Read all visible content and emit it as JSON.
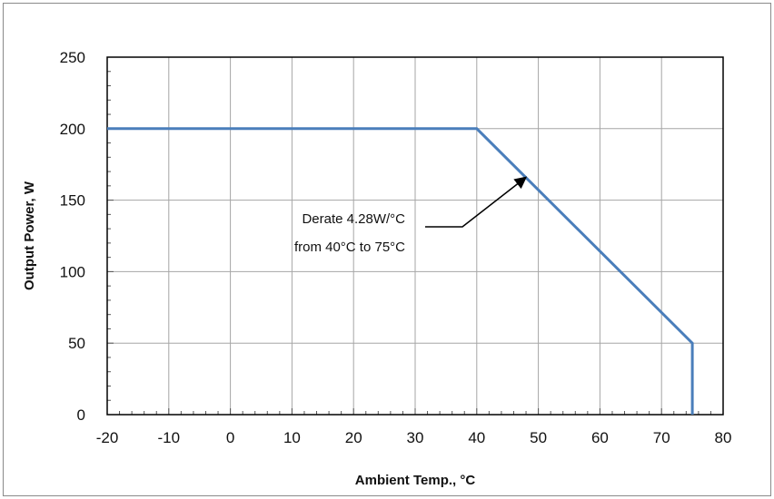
{
  "chart_data": {
    "type": "line",
    "title": "",
    "xlabel": "Ambient Temp., °C",
    "ylabel": "Output Power, W",
    "xlim": [
      -20,
      80
    ],
    "ylim": [
      0,
      250
    ],
    "x_ticks": [
      -20,
      -10,
      0,
      10,
      20,
      30,
      40,
      50,
      60,
      70,
      80
    ],
    "y_ticks": [
      0,
      50,
      100,
      150,
      200,
      250
    ],
    "x_tick_labels": [
      "-20",
      "-10",
      "0",
      "10",
      "20",
      "30",
      "40",
      "50",
      "60",
      "70",
      "80"
    ],
    "y_tick_labels": [
      "0",
      "50",
      "100",
      "150",
      "200",
      "250"
    ],
    "grid": true,
    "legend": "none",
    "series": [
      {
        "color": "#4a7ebb",
        "points": [
          {
            "x": -20,
            "y": 200
          },
          {
            "x": 40,
            "y": 200
          },
          {
            "x": 75,
            "y": 50
          },
          {
            "x": 75,
            "y": 0
          }
        ]
      }
    ],
    "annotations": [
      {
        "lines": [
          "Derate  4.28W/°C",
          "from 40°C to 75°C"
        ],
        "arrow_target": {
          "x": 48,
          "y": 166
        }
      }
    ]
  }
}
